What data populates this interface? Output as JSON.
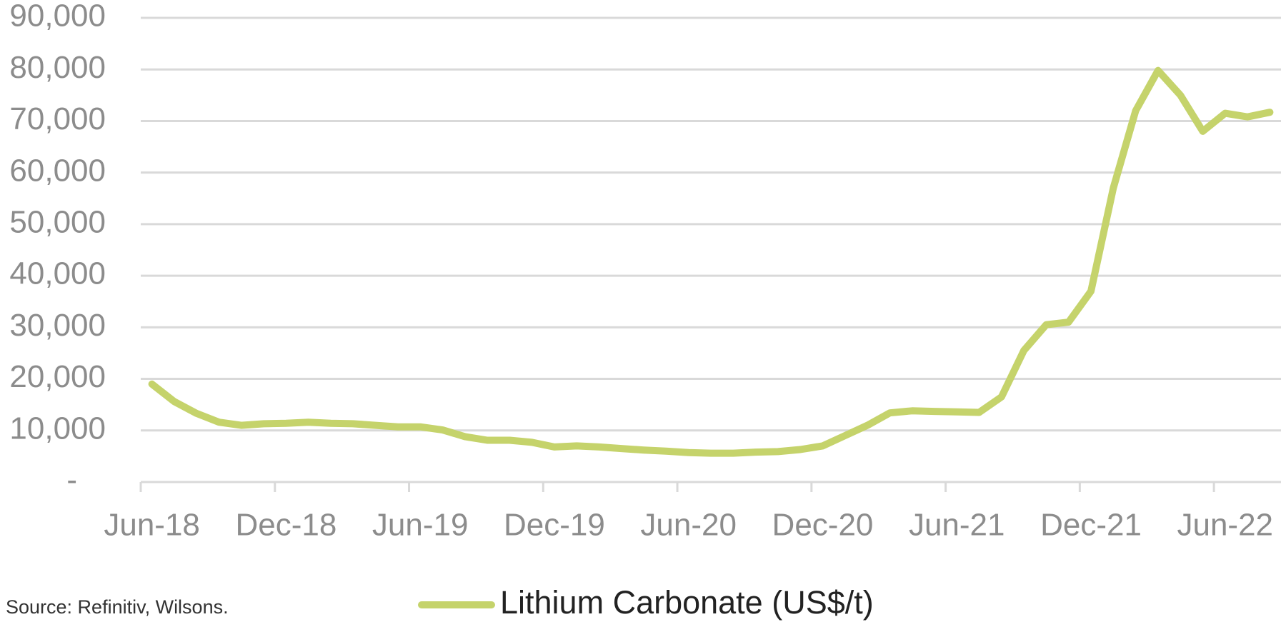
{
  "chart_data": {
    "type": "line",
    "categories": [
      "Jun-18",
      null,
      null,
      null,
      null,
      null,
      "Dec-18",
      null,
      null,
      null,
      null,
      null,
      "Jun-19",
      null,
      null,
      null,
      null,
      null,
      "Dec-19",
      null,
      null,
      null,
      null,
      null,
      "Jun-20",
      null,
      null,
      null,
      null,
      null,
      "Dec-20",
      null,
      null,
      null,
      null,
      null,
      "Jun-21",
      null,
      null,
      null,
      null,
      null,
      "Dec-21",
      null,
      null,
      null,
      null,
      null,
      "Jun-22",
      null,
      null
    ],
    "series": [
      {
        "name": "Lithium Carbonate (US$/t)",
        "color": "#c5d36b",
        "values": [
          19000,
          15600,
          13300,
          11600,
          11000,
          11300,
          11400,
          11600,
          11400,
          11300,
          11000,
          10700,
          10700,
          10100,
          8800,
          8100,
          8100,
          7700,
          6800,
          7000,
          6800,
          6500,
          6200,
          6000,
          5700,
          5600,
          5600,
          5800,
          5900,
          6300,
          7000,
          9000,
          11000,
          13400,
          13800,
          13700,
          13600,
          13500,
          16500,
          25500,
          30500,
          31000,
          37000,
          57000,
          72000,
          79800,
          75000,
          68000,
          71500,
          70800,
          71700
        ]
      }
    ],
    "ylim": [
      0,
      90000
    ],
    "yticks": [
      {
        "value": 0,
        "label": "-"
      },
      {
        "value": 10000,
        "label": "10,000"
      },
      {
        "value": 20000,
        "label": "20,000"
      },
      {
        "value": 30000,
        "label": "30,000"
      },
      {
        "value": 40000,
        "label": "40,000"
      },
      {
        "value": 50000,
        "label": "50,000"
      },
      {
        "value": 60000,
        "label": "60,000"
      },
      {
        "value": 70000,
        "label": "70,000"
      },
      {
        "value": 80000,
        "label": "80,000"
      },
      {
        "value": 90000,
        "label": "90,000"
      }
    ],
    "grid": true,
    "source": "Source: Refinitiv, Wilsons."
  }
}
